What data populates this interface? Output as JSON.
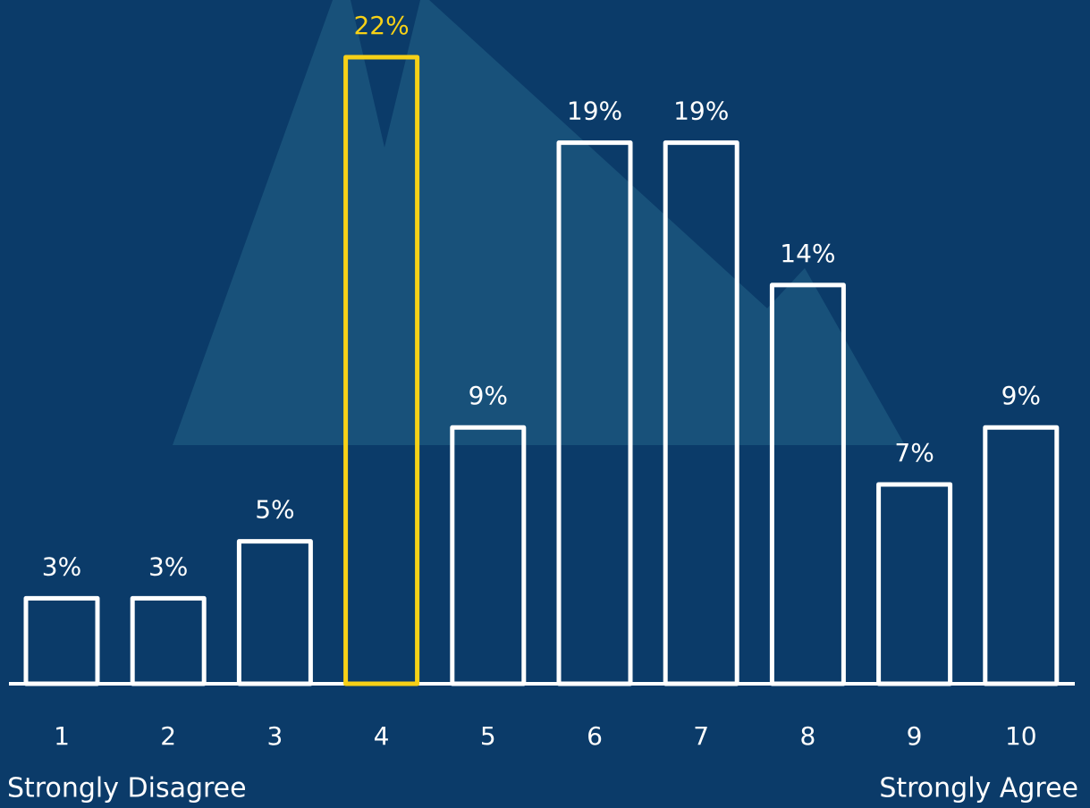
{
  "chart_data": {
    "type": "bar",
    "categories": [
      "1",
      "2",
      "3",
      "4",
      "5",
      "6",
      "7",
      "8",
      "9",
      "10"
    ],
    "values": [
      3,
      3,
      5,
      22,
      9,
      19,
      19,
      14,
      7,
      9
    ],
    "value_labels": [
      "3%",
      "3%",
      "5%",
      "22%",
      "9%",
      "19%",
      "19%",
      "14%",
      "7%",
      "9%"
    ],
    "colors": [
      "#ffffff",
      "#ffffff",
      "#ffffff",
      "#f7d117",
      "#ffffff",
      "#ffffff",
      "#ffffff",
      "#ffffff",
      "#ffffff",
      "#ffffff"
    ],
    "ylim": [
      0,
      22
    ],
    "x_label_left": "Strongly Disagree",
    "x_label_right": "Strongly Agree"
  }
}
